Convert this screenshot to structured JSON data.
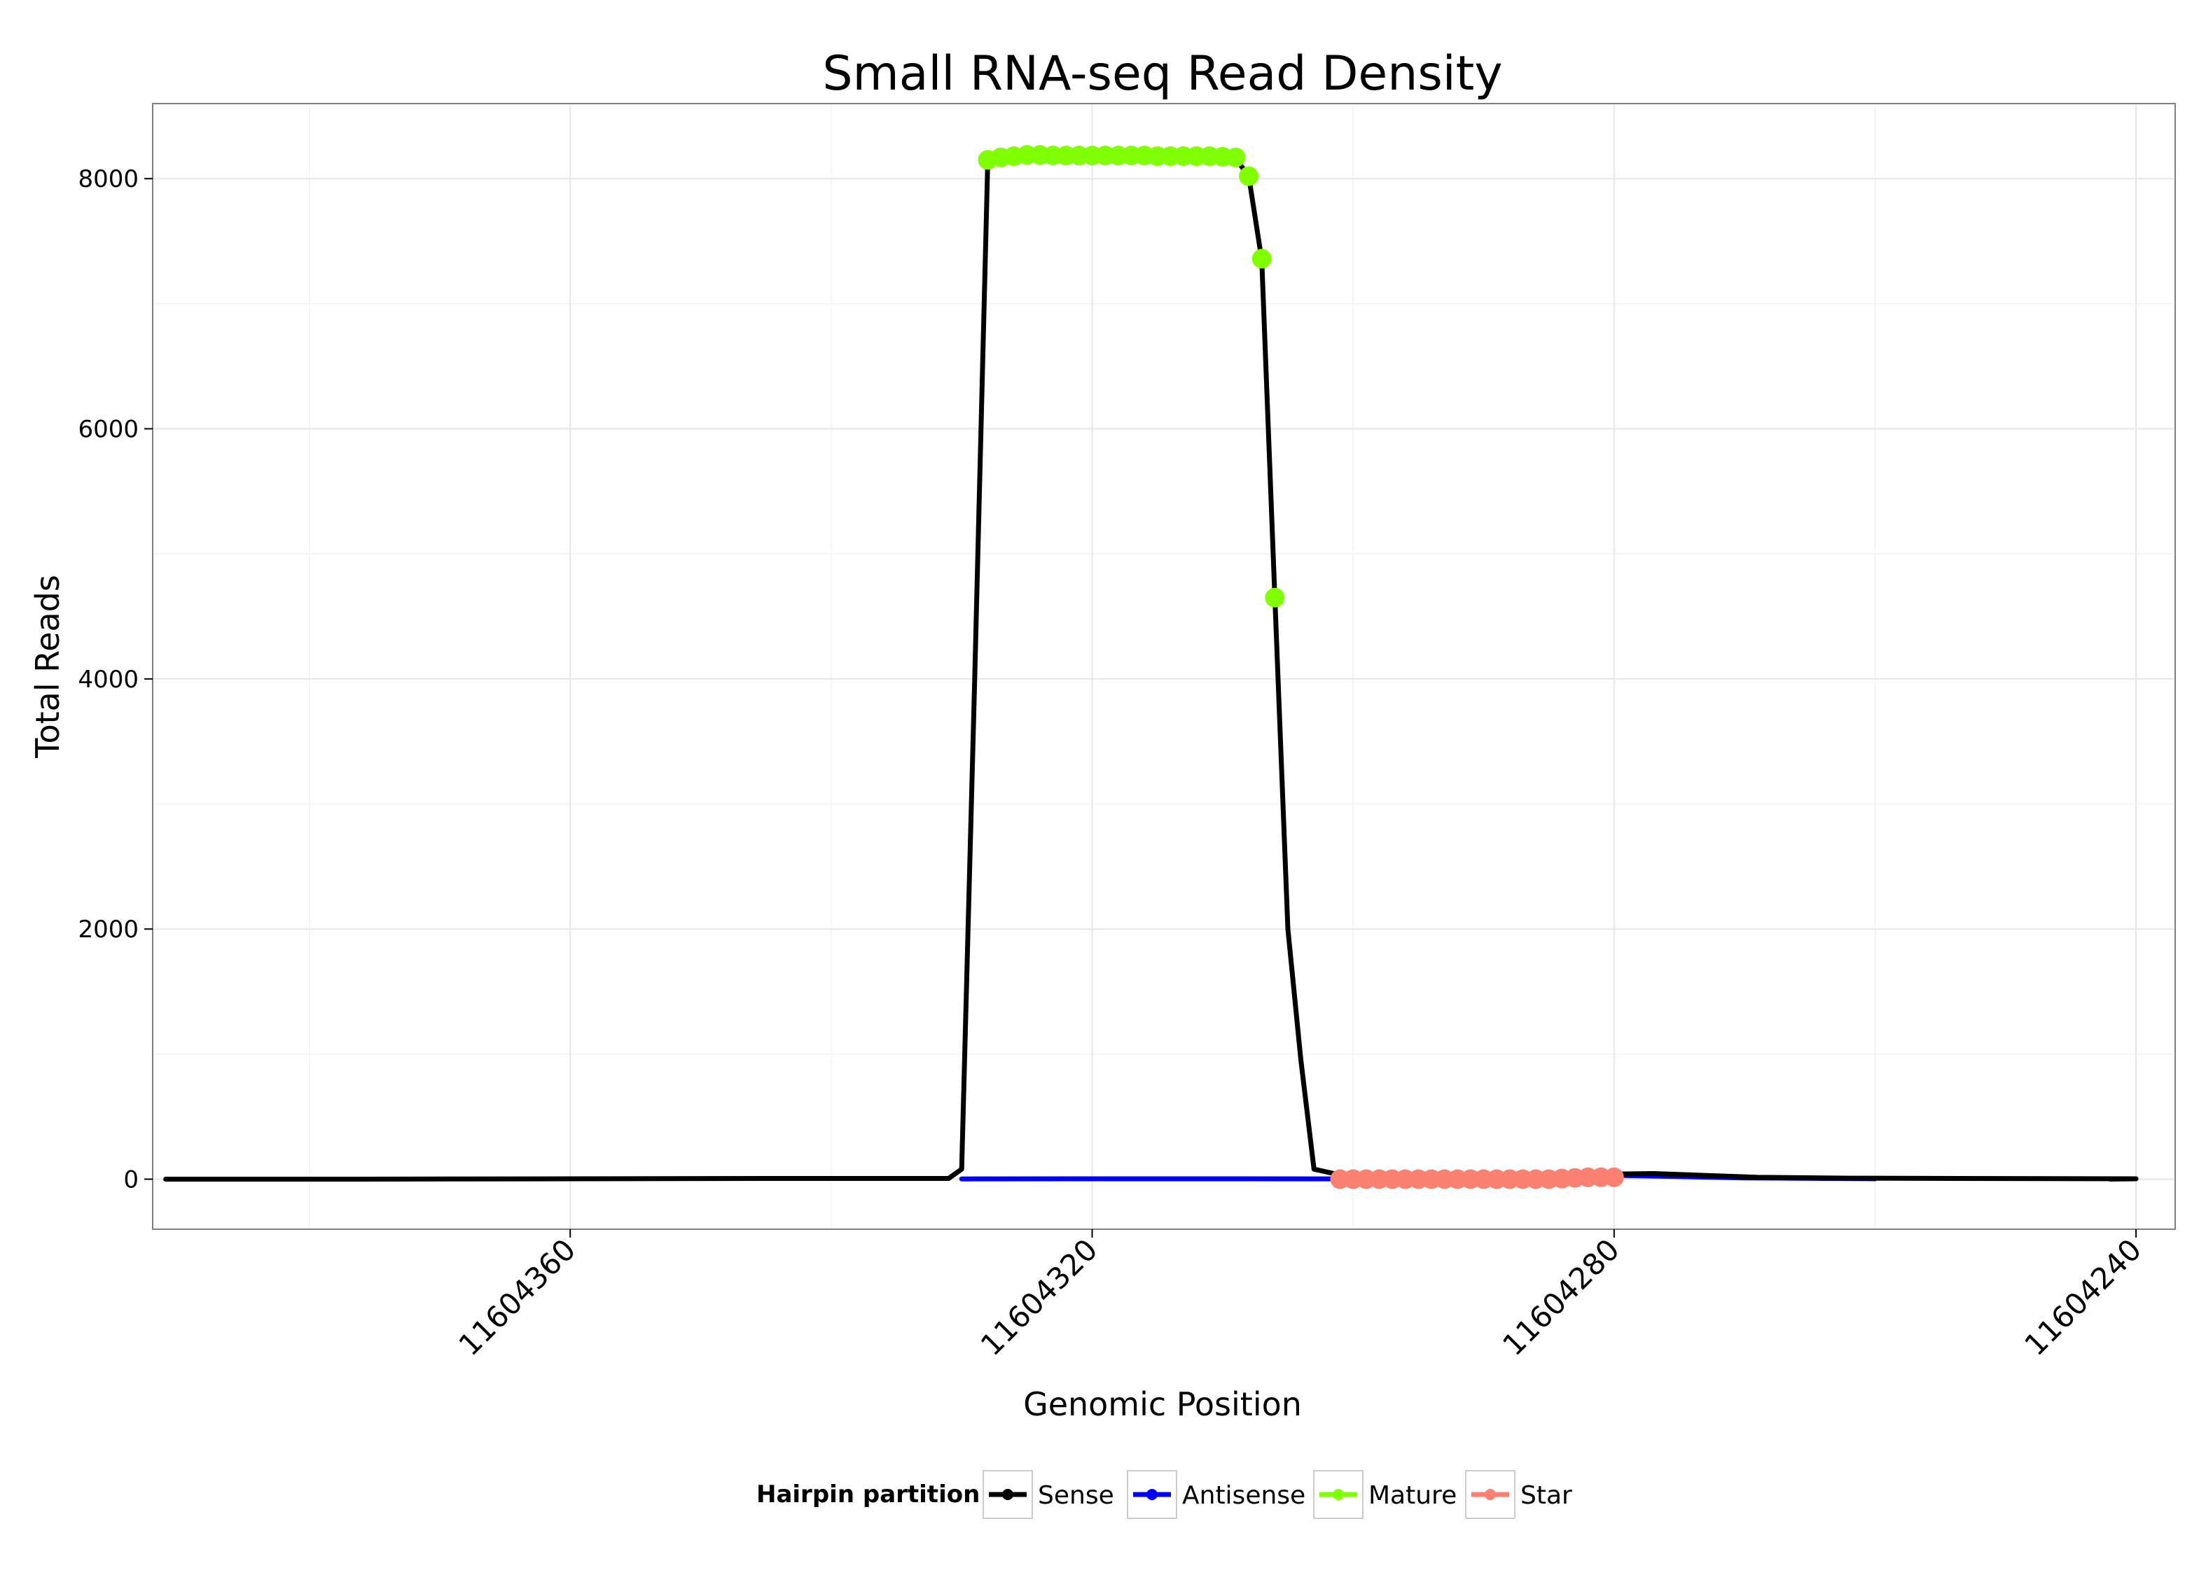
{
  "chart_data": {
    "type": "line",
    "title": "Small RNA-seq Read Density",
    "xlabel": "Genomic Position",
    "ylabel": "Total Reads",
    "x_reversed": true,
    "xlim": [
      11604392,
      11604237
    ],
    "ylim": [
      -400,
      8600
    ],
    "x_ticks": [
      11604360,
      11604320,
      11604280,
      11604240
    ],
    "x_tick_labels": [
      "11604360",
      "11604320",
      "11604280",
      "11604240"
    ],
    "y_ticks": [
      0,
      2000,
      4000,
      6000,
      8000
    ],
    "y_tick_labels": [
      "0",
      "2000",
      "4000",
      "6000",
      "8000"
    ],
    "grid": true,
    "legend": {
      "title": "Hairpin partition",
      "position": "bottom",
      "entries": [
        "Sense",
        "Antisense",
        "Mature",
        "Star"
      ]
    },
    "colors": {
      "Sense": "#000000",
      "Antisense": "#0000ff",
      "Mature": "#7fff00",
      "Star": "#fa8072"
    },
    "series": [
      {
        "name": "Sense",
        "style": "line",
        "x": [
          11604391,
          11604376,
          11604360,
          11604345,
          11604337,
          11604331,
          11604330,
          11604329,
          11604328,
          11604310,
          11604309,
          11604308,
          11604307,
          11604306,
          11604305,
          11604304,
          11604303,
          11604300,
          11604297,
          11604290,
          11604284,
          11604277,
          11604269,
          11604262,
          11604240,
          11604242
        ],
        "y": [
          0,
          0,
          3,
          6,
          6,
          6,
          80,
          4000,
          8150,
          8180,
          8160,
          8020,
          7350,
          4650,
          2000,
          950,
          80,
          10,
          5,
          15,
          35,
          45,
          15,
          8,
          3,
          0
        ]
      },
      {
        "name": "Antisense",
        "style": "line",
        "x": [
          11604330,
          11604320,
          11604310,
          11604300,
          11604290,
          11604283,
          11604282,
          11604270,
          11604260
        ],
        "y": [
          2,
          3,
          3,
          2,
          5,
          30,
          35,
          10,
          3
        ]
      },
      {
        "name": "Mature",
        "style": "points",
        "x": [
          11604328,
          11604327,
          11604326,
          11604325,
          11604324,
          11604323,
          11604322,
          11604321,
          11604320,
          11604319,
          11604318,
          11604317,
          11604316,
          11604315,
          11604314,
          11604313,
          11604312,
          11604311,
          11604310,
          11604309,
          11604308,
          11604307,
          11604306
        ],
        "y": [
          8150,
          8170,
          8180,
          8190,
          8190,
          8185,
          8185,
          8185,
          8185,
          8185,
          8185,
          8185,
          8185,
          8180,
          8180,
          8180,
          8180,
          8180,
          8175,
          8170,
          8020,
          7360,
          4650
        ]
      },
      {
        "name": "Star",
        "style": "points",
        "x": [
          11604301,
          11604300,
          11604299,
          11604298,
          11604297,
          11604296,
          11604295,
          11604294,
          11604293,
          11604292,
          11604291,
          11604290,
          11604289,
          11604288,
          11604287,
          11604286,
          11604285,
          11604284,
          11604283,
          11604282,
          11604281,
          11604280
        ],
        "y": [
          0,
          0,
          0,
          0,
          0,
          0,
          0,
          0,
          0,
          0,
          0,
          0,
          0,
          0,
          0,
          0,
          0,
          5,
          10,
          15,
          15,
          15
        ]
      }
    ]
  }
}
